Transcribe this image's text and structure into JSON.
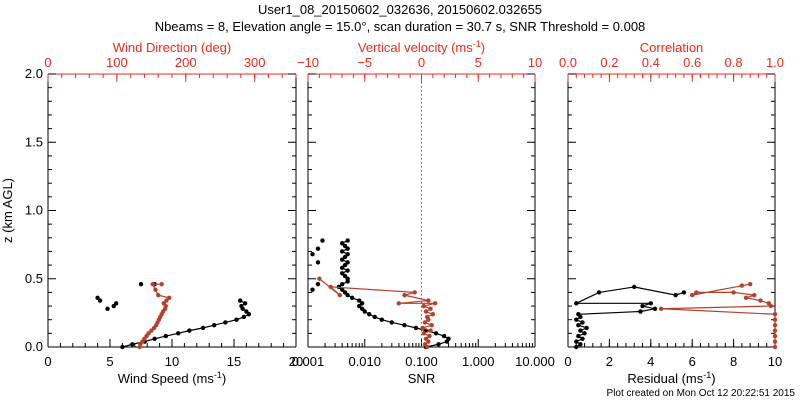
{
  "figure": {
    "title_line1": "User1_08_20150602_032636, 20150602.032655",
    "title_line2": "Nbeams = 8, Elevation angle = 15.0°, scan duration = 30.7 s, SNR Threshold = 0.008",
    "footer": "Plot created on Mon Oct 12 20:22:51 2015",
    "colors": {
      "black": "#000000",
      "red": "#e8291c",
      "brown": "#b5412c"
    }
  },
  "chart_data": [
    {
      "type": "scatter",
      "panel": "wind",
      "ylabel": "z (km AGL)",
      "ylim": [
        0,
        2
      ],
      "yticks": [
        "0.0",
        "0.5",
        "1.0",
        "1.5",
        "2.0"
      ],
      "bottom_axis": {
        "label": "Wind Speed (ms",
        "label_sup": "-1",
        "label_end": ")",
        "range": [
          0,
          20
        ],
        "ticks": [
          "0",
          "5",
          "10",
          "15",
          "20"
        ]
      },
      "top_axis": {
        "label": "Wind Direction (deg)",
        "range": [
          0,
          360
        ],
        "ticks": [
          "0",
          "100",
          "200",
          "300"
        ],
        "tick_values": [
          0,
          100,
          200,
          300
        ]
      },
      "series": [
        {
          "axis": "bottom",
          "color": "#000000",
          "points": [
            [
              6.0,
              0.0
            ],
            [
              6.8,
              0.02
            ],
            [
              7.8,
              0.04
            ],
            [
              8.6,
              0.06
            ],
            [
              9.5,
              0.08
            ],
            [
              10.5,
              0.1
            ],
            [
              11.4,
              0.12
            ],
            [
              12.5,
              0.14
            ],
            [
              13.4,
              0.16
            ],
            [
              14.3,
              0.18
            ],
            [
              15.2,
              0.2
            ],
            [
              15.8,
              0.22
            ],
            [
              16.2,
              0.24
            ],
            [
              16.0,
              0.26
            ],
            [
              15.7,
              0.28
            ],
            [
              15.6,
              0.3
            ],
            [
              15.9,
              0.32
            ],
            [
              15.5,
              0.34
            ]
          ],
          "outliers": [
            [
              4.8,
              0.28
            ],
            [
              5.3,
              0.3
            ],
            [
              5.5,
              0.32
            ],
            [
              4.2,
              0.34
            ],
            [
              4.0,
              0.36
            ],
            [
              7.5,
              0.46
            ],
            [
              8.6,
              0.46
            ]
          ]
        },
        {
          "axis": "top",
          "color": "#b5412c",
          "points": [
            [
              133,
              0.0
            ],
            [
              134,
              0.02
            ],
            [
              137,
              0.04
            ],
            [
              140,
              0.06
            ],
            [
              143,
              0.08
            ],
            [
              146,
              0.1
            ],
            [
              150,
              0.12
            ],
            [
              154,
              0.14
            ],
            [
              157,
              0.16
            ],
            [
              159,
              0.18
            ],
            [
              161,
              0.2
            ],
            [
              163,
              0.22
            ],
            [
              165,
              0.24
            ],
            [
              167,
              0.26
            ],
            [
              170,
              0.28
            ],
            [
              171,
              0.3
            ],
            [
              168,
              0.32
            ],
            [
              172,
              0.34
            ],
            [
              176,
              0.36
            ],
            [
              160,
              0.38
            ],
            [
              156,
              0.42
            ],
            [
              152,
              0.46
            ],
            [
              165,
              0.46
            ]
          ]
        }
      ]
    },
    {
      "type": "scatter",
      "panel": "snr",
      "ylim": [
        0,
        2
      ],
      "bottom_axis": {
        "label": "SNR",
        "scale": "log",
        "range": [
          0.001,
          10
        ],
        "ticks": [
          "0.001",
          "0.010",
          "0.100",
          "1.000",
          "10.000"
        ],
        "tick_values": [
          0.001,
          0.01,
          0.1,
          1,
          10
        ]
      },
      "top_axis": {
        "label": "Vertical velocity (ms",
        "label_sup": "-1",
        "label_end": ")",
        "range": [
          -10,
          10
        ],
        "ticks": [
          "−10",
          "−5",
          "0",
          "5",
          "10"
        ],
        "tick_values": [
          -10,
          -5,
          0,
          5,
          10
        ]
      },
      "series": [
        {
          "axis": "bottom",
          "color": "#000000",
          "points": [
            [
              0.12,
              0.0
            ],
            [
              0.2,
              0.02
            ],
            [
              0.28,
              0.04
            ],
            [
              0.3,
              0.06
            ],
            [
              0.25,
              0.08
            ],
            [
              0.18,
              0.1
            ],
            [
              0.12,
              0.12
            ],
            [
              0.08,
              0.14
            ],
            [
              0.05,
              0.16
            ],
            [
              0.03,
              0.18
            ],
            [
              0.02,
              0.2
            ],
            [
              0.015,
              0.22
            ],
            [
              0.012,
              0.24
            ],
            [
              0.01,
              0.26
            ],
            [
              0.009,
              0.28
            ],
            [
              0.008,
              0.3
            ],
            [
              0.009,
              0.32
            ],
            [
              0.008,
              0.34
            ],
            [
              0.006,
              0.36
            ],
            [
              0.005,
              0.38
            ],
            [
              0.0045,
              0.4
            ],
            [
              0.004,
              0.42
            ],
            [
              0.0035,
              0.44
            ],
            [
              0.004,
              0.46
            ],
            [
              0.005,
              0.48
            ],
            [
              0.005,
              0.5
            ],
            [
              0.0045,
              0.52
            ],
            [
              0.004,
              0.54
            ],
            [
              0.005,
              0.56
            ],
            [
              0.004,
              0.58
            ],
            [
              0.0045,
              0.6
            ],
            [
              0.005,
              0.62
            ],
            [
              0.004,
              0.64
            ],
            [
              0.0045,
              0.66
            ],
            [
              0.005,
              0.68
            ],
            [
              0.004,
              0.7
            ],
            [
              0.005,
              0.72
            ],
            [
              0.0045,
              0.74
            ],
            [
              0.004,
              0.76
            ],
            [
              0.005,
              0.78
            ]
          ],
          "outliers": [
            [
              0.0015,
              0.46
            ],
            [
              0.0012,
              0.42
            ],
            [
              0.0015,
              0.62
            ],
            [
              0.0012,
              0.68
            ],
            [
              0.0015,
              0.72
            ],
            [
              0.0018,
              0.78
            ]
          ]
        },
        {
          "axis": "top",
          "color": "#b5412c",
          "points": [
            [
              0.5,
              0.0
            ],
            [
              0.3,
              0.02
            ],
            [
              0.6,
              0.04
            ],
            [
              0.4,
              0.06
            ],
            [
              0.7,
              0.08
            ],
            [
              0.2,
              0.1
            ],
            [
              0.8,
              0.12
            ],
            [
              0.1,
              0.14
            ],
            [
              0.9,
              0.16
            ],
            [
              0.3,
              0.18
            ],
            [
              0.6,
              0.2
            ],
            [
              0.5,
              0.22
            ],
            [
              1.0,
              0.24
            ],
            [
              0.4,
              0.26
            ],
            [
              0.8,
              0.28
            ],
            [
              0.2,
              0.3
            ],
            [
              1.2,
              0.32
            ],
            [
              -2.0,
              0.32
            ],
            [
              0.6,
              0.34
            ],
            [
              -1.5,
              0.38
            ],
            [
              -0.6,
              0.4
            ],
            [
              -8.0,
              0.44
            ],
            [
              -7.2,
              0.38
            ],
            [
              -9.0,
              0.5
            ]
          ]
        }
      ],
      "reference_line": {
        "axis": "top",
        "value": 0,
        "color": "#e8291c",
        "style": "dotted"
      }
    },
    {
      "type": "scatter",
      "panel": "residual",
      "ylim": [
        0,
        2
      ],
      "bottom_axis": {
        "label": "Residual (ms",
        "label_sup": "-1",
        "label_end": ")",
        "range": [
          0,
          10
        ],
        "ticks": [
          "0",
          "2",
          "4",
          "6",
          "8",
          "10"
        ],
        "tick_values": [
          0,
          2,
          4,
          6,
          8,
          10
        ]
      },
      "top_axis": {
        "label": "Correlation",
        "range": [
          0,
          1
        ],
        "ticks": [
          "0.0",
          "0.2",
          "0.4",
          "0.6",
          "0.8",
          "1.0"
        ],
        "tick_values": [
          0,
          0.2,
          0.4,
          0.6,
          0.8,
          1.0
        ]
      },
      "series": [
        {
          "axis": "bottom",
          "color": "#000000",
          "points": [
            [
              0.4,
              0.0
            ],
            [
              0.6,
              0.02
            ],
            [
              0.4,
              0.04
            ],
            [
              0.7,
              0.06
            ],
            [
              0.5,
              0.08
            ],
            [
              0.8,
              0.1
            ],
            [
              0.6,
              0.12
            ],
            [
              0.9,
              0.14
            ],
            [
              0.5,
              0.16
            ],
            [
              0.7,
              0.18
            ],
            [
              0.4,
              0.2
            ],
            [
              0.6,
              0.22
            ],
            [
              0.5,
              0.24
            ],
            [
              3.5,
              0.26
            ],
            [
              4.2,
              0.28
            ],
            [
              3.6,
              0.3
            ],
            [
              4.0,
              0.32
            ],
            [
              0.4,
              0.32
            ],
            [
              1.5,
              0.4
            ],
            [
              3.2,
              0.44
            ],
            [
              5.2,
              0.38
            ],
            [
              5.6,
              0.4
            ]
          ]
        },
        {
          "axis": "top",
          "color": "#b5412c",
          "points": [
            [
              1.0,
              0.0
            ],
            [
              1.0,
              0.04
            ],
            [
              1.0,
              0.08
            ],
            [
              1.0,
              0.12
            ],
            [
              1.0,
              0.16
            ],
            [
              1.0,
              0.2
            ],
            [
              1.0,
              0.24
            ],
            [
              0.45,
              0.28
            ],
            [
              0.98,
              0.3
            ],
            [
              0.97,
              0.32
            ],
            [
              0.93,
              0.34
            ],
            [
              0.86,
              0.36
            ],
            [
              0.9,
              0.38
            ],
            [
              0.8,
              0.4
            ],
            [
              0.62,
              0.4
            ],
            [
              0.6,
              0.38
            ],
            [
              0.88,
              0.46
            ],
            [
              0.84,
              0.45
            ]
          ]
        }
      ]
    }
  ]
}
